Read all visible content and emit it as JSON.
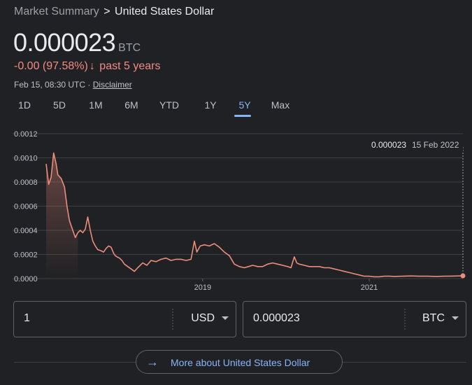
{
  "breadcrumb": {
    "parent": "Market Summary",
    "separator": ">",
    "current": "United States Dollar"
  },
  "price": {
    "value": "0.000023",
    "unit": "BTC"
  },
  "change": {
    "amount": "-0.00",
    "percent": "(97.58%)",
    "arrow": "↓",
    "period": "past 5 years"
  },
  "meta": {
    "timestamp": "Feb 15, 08:30 UTC",
    "separator": "·",
    "disclaimer": "Disclaimer"
  },
  "tabs": [
    {
      "label": "1D",
      "active": false
    },
    {
      "label": "5D",
      "active": false
    },
    {
      "label": "1M",
      "active": false
    },
    {
      "label": "6M",
      "active": false
    },
    {
      "label": "YTD",
      "active": false
    },
    {
      "label": "1Y",
      "active": false
    },
    {
      "label": "5Y",
      "active": true
    },
    {
      "label": "Max",
      "active": false
    }
  ],
  "tooltip": {
    "value": "0.000023",
    "date": "15 Feb 2022"
  },
  "colors": {
    "line": "#ee8c7c",
    "accent": "#8ab4f8",
    "background": "#202124",
    "grid": "#3c4043"
  },
  "chart_data": {
    "type": "line",
    "title": "",
    "xlabel": "",
    "ylabel": "",
    "ylim": [
      0,
      0.0012
    ],
    "y_ticks": [
      "0.0000",
      "0.0002",
      "0.0004",
      "0.0006",
      "0.0008",
      "0.0010",
      "0.0012"
    ],
    "xlim": [
      2017.12,
      2022.125
    ],
    "x_ticks": [
      {
        "label": "2019",
        "x": 2019.0
      },
      {
        "label": "2021",
        "x": 2021.0
      }
    ],
    "grid": true,
    "series": [
      {
        "x": [
          2017.12,
          2017.15,
          2017.18,
          2017.21,
          2017.24,
          2017.26,
          2017.3,
          2017.34,
          2017.37,
          2017.4,
          2017.43,
          2017.47,
          2017.5,
          2017.53,
          2017.56,
          2017.59,
          2017.62,
          2017.65,
          2017.68,
          2017.71,
          2017.74,
          2017.78,
          2017.81,
          2017.84,
          2017.87,
          2017.9,
          2017.93,
          2017.95,
          2017.97,
          2018.0,
          2018.03,
          2018.06,
          2018.1,
          2018.14,
          2018.18,
          2018.22,
          2018.28,
          2018.33,
          2018.38,
          2018.44,
          2018.5,
          2018.56,
          2018.62,
          2018.68,
          2018.74,
          2018.8,
          2018.86,
          2018.9,
          2018.93,
          2018.97,
          2019.02,
          2019.08,
          2019.14,
          2019.2,
          2019.26,
          2019.32,
          2019.38,
          2019.44,
          2019.5,
          2019.55,
          2019.6,
          2019.66,
          2019.72,
          2019.78,
          2019.84,
          2019.9,
          2019.96,
          2020.02,
          2020.06,
          2020.1,
          2020.13,
          2020.16,
          2020.22,
          2020.28,
          2020.34,
          2020.4,
          2020.46,
          2020.52,
          2020.58,
          2020.64,
          2020.7,
          2020.76,
          2020.82,
          2020.88,
          2020.94,
          2021.0,
          2021.06,
          2021.12,
          2021.18,
          2021.24,
          2021.3,
          2021.4,
          2021.5,
          2021.6,
          2021.7,
          2021.8,
          2021.9,
          2022.0,
          2022.08,
          2022.125
        ],
        "y": [
          0.00095,
          0.00078,
          0.00084,
          0.00104,
          0.00095,
          0.00086,
          0.00083,
          0.00076,
          0.0006,
          0.00048,
          0.00042,
          0.00034,
          0.00038,
          0.0004,
          0.00038,
          0.00041,
          0.00051,
          0.0004,
          0.00031,
          0.00027,
          0.00024,
          0.00023,
          0.00022,
          0.00025,
          0.00027,
          0.00026,
          0.00021,
          0.00019,
          0.00018,
          0.00017,
          0.00015,
          0.00012,
          0.0001,
          8e-05,
          6e-05,
          9e-05,
          0.00013,
          0.00011,
          0.00015,
          0.00014,
          0.00016,
          0.00017,
          0.00015,
          0.00016,
          0.00016,
          0.00015,
          0.00016,
          0.00031,
          0.00022,
          0.00027,
          0.00028,
          0.00027,
          0.00029,
          0.00026,
          0.00022,
          0.00019,
          0.00012,
          0.0001,
          9e-05,
          0.0001,
          0.00011,
          0.0001,
          0.0001,
          0.00012,
          0.00013,
          0.00012,
          0.00011,
          0.0001,
          9e-05,
          0.00018,
          0.00013,
          0.00012,
          0.00011,
          0.0001,
          0.0001,
          0.0001,
          9e-05,
          9e-05,
          8e-05,
          7e-05,
          6e-05,
          5e-05,
          4e-05,
          3e-05,
          2e-05,
          2e-05,
          1.5e-05,
          1.5e-05,
          2e-05,
          2e-05,
          1.8e-05,
          2e-05,
          2.2e-05,
          2e-05,
          2e-05,
          1.8e-05,
          2e-05,
          2.1e-05,
          2.2e-05,
          2.3e-05
        ]
      }
    ]
  },
  "converter": {
    "left": {
      "value": "1",
      "currency": "USD"
    },
    "right": {
      "value": "0.000023",
      "currency": "BTC"
    }
  },
  "more_button": {
    "icon": "arrow-right-icon",
    "label": "More about United States Dollar"
  }
}
